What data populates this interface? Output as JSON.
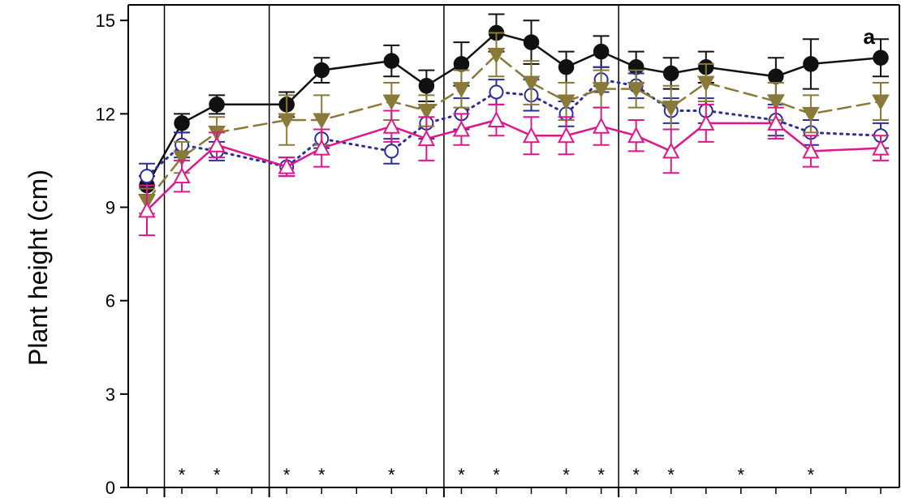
{
  "chart_data": {
    "type": "line",
    "title": "",
    "panel_label": "a",
    "xlabel": "",
    "ylabel": "Plant height (cm)",
    "ylim": [
      0,
      15.5
    ],
    "y_ticks": [
      0,
      3,
      6,
      9,
      12,
      15
    ],
    "x_index": [
      1,
      2,
      3,
      4,
      5,
      6,
      7,
      8,
      9,
      10,
      11,
      12,
      13,
      14,
      15,
      16,
      17,
      18,
      19,
      20,
      21,
      22
    ],
    "period_boundaries": [
      1.5,
      4.5,
      9.5,
      14.5
    ],
    "significance_positions": [
      2,
      3,
      5,
      6,
      8,
      10,
      11,
      13,
      14,
      15,
      16,
      18,
      20
    ],
    "significance_marker": "*",
    "grid": false,
    "series": [
      {
        "color": "#111111",
        "marker": "filled-circle",
        "line": "solid",
        "values": [
          9.7,
          11.7,
          12.3,
          12.3,
          13.4,
          13.7,
          12.9,
          13.6,
          14.6,
          14.3,
          13.5,
          14.0,
          13.5,
          13.3,
          13.5,
          13.2,
          13.6,
          13.8
        ],
        "positions": [
          1,
          2,
          3,
          5,
          6,
          8,
          9,
          10,
          11,
          12,
          13,
          14,
          15,
          16,
          17,
          19,
          20,
          22
        ],
        "errors": [
          0.3,
          0.3,
          0.3,
          0.4,
          0.4,
          0.5,
          0.5,
          0.7,
          0.6,
          0.7,
          0.5,
          0.5,
          0.5,
          0.5,
          0.5,
          0.6,
          0.8,
          0.6
        ]
      },
      {
        "color": "#2e2e9a",
        "marker": "open-circle",
        "line": "dotted",
        "values": [
          10.0,
          11.0,
          10.8,
          10.3,
          11.2,
          10.8,
          11.7,
          12.0,
          12.7,
          12.6,
          12.0,
          13.1,
          12.9,
          12.1,
          12.1,
          11.8,
          11.4,
          11.3
        ],
        "positions": [
          1,
          2,
          3,
          5,
          6,
          8,
          9,
          10,
          11,
          12,
          13,
          14,
          15,
          16,
          17,
          19,
          20,
          22
        ],
        "errors": [
          0.4,
          0.4,
          0.3,
          0.3,
          0.3,
          0.4,
          0.5,
          0.5,
          0.4,
          0.5,
          0.4,
          0.4,
          0.4,
          0.4,
          0.4,
          0.5,
          0.4,
          0.4
        ]
      },
      {
        "color": "#8a7a3a",
        "marker": "filled-triangle-down",
        "line": "dashed",
        "values": [
          9.2,
          10.6,
          11.4,
          11.8,
          11.8,
          12.4,
          12.1,
          12.8,
          13.9,
          13.0,
          12.4,
          12.8,
          12.8,
          12.2,
          13.0,
          12.4,
          12.0,
          12.4
        ],
        "positions": [
          1,
          2,
          3,
          5,
          6,
          8,
          9,
          10,
          11,
          12,
          13,
          14,
          15,
          16,
          17,
          19,
          20,
          22
        ],
        "errors": [
          0.4,
          0.5,
          0.5,
          0.8,
          0.8,
          0.6,
          0.5,
          0.6,
          0.7,
          0.7,
          0.6,
          0.6,
          0.6,
          0.7,
          0.6,
          0.6,
          0.6,
          0.6
        ]
      },
      {
        "color": "#e0168c",
        "marker": "open-triangle-up",
        "line": "solid",
        "values": [
          8.9,
          10.0,
          11.0,
          10.3,
          10.9,
          11.6,
          11.2,
          11.5,
          11.8,
          11.3,
          11.3,
          11.6,
          11.3,
          10.8,
          11.7,
          11.7,
          10.8,
          10.9
        ],
        "positions": [
          1,
          2,
          3,
          5,
          6,
          8,
          9,
          10,
          11,
          12,
          13,
          14,
          15,
          16,
          17,
          19,
          20,
          22
        ],
        "errors": [
          0.8,
          0.5,
          0.4,
          0.3,
          0.6,
          0.5,
          0.7,
          0.5,
          0.5,
          0.6,
          0.6,
          0.6,
          0.5,
          0.7,
          0.6,
          0.5,
          0.5,
          0.4
        ]
      }
    ]
  }
}
